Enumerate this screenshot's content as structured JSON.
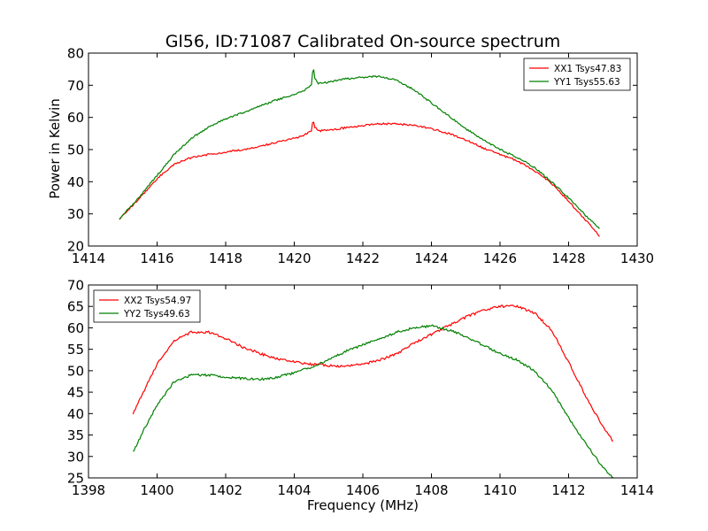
{
  "figure": {
    "title": "Gl56, ID:71087 Calibrated On-source spectrum",
    "xlabel": "Frequency (MHz)",
    "ylabel": "Power in Kelvin"
  },
  "chart_data": [
    {
      "type": "line",
      "title": "Gl56, ID:71087 Calibrated On-source spectrum",
      "xlabel": "",
      "ylabel": "Power in Kelvin",
      "xlim": [
        1414,
        1430
      ],
      "ylim": [
        20,
        80
      ],
      "xticks": [
        1414,
        1416,
        1418,
        1420,
        1422,
        1424,
        1426,
        1428,
        1430
      ],
      "yticks": [
        20,
        30,
        40,
        50,
        60,
        70,
        80
      ],
      "legend": "top-right",
      "grid": false,
      "series": [
        {
          "name": "XX1 Tsys47.83",
          "color": "#ff0000",
          "x": [
            1414.9,
            1415.5,
            1416.0,
            1416.5,
            1417.0,
            1417.5,
            1418.0,
            1418.5,
            1419.0,
            1419.5,
            1420.0,
            1420.3,
            1420.5,
            1420.55,
            1420.6,
            1420.7,
            1421.0,
            1421.5,
            1422.0,
            1422.5,
            1423.0,
            1423.5,
            1424.0,
            1424.5,
            1425.0,
            1425.5,
            1426.0,
            1426.5,
            1427.0,
            1427.5,
            1428.0,
            1428.5,
            1428.9
          ],
          "y": [
            28.5,
            35.0,
            41.0,
            45.5,
            47.5,
            48.5,
            49.2,
            50.0,
            51.0,
            52.3,
            53.5,
            54.5,
            55.8,
            59.5,
            57.0,
            55.8,
            56.0,
            56.8,
            57.5,
            58.0,
            58.0,
            57.5,
            56.5,
            55.0,
            53.0,
            50.5,
            48.5,
            46.5,
            43.5,
            39.5,
            34.0,
            28.0,
            23.0
          ]
        },
        {
          "name": "YY1 Tsys55.63",
          "color": "#008000",
          "x": [
            1414.9,
            1415.5,
            1416.0,
            1416.5,
            1417.0,
            1417.5,
            1418.0,
            1418.5,
            1419.0,
            1419.5,
            1420.0,
            1420.3,
            1420.5,
            1420.55,
            1420.6,
            1420.7,
            1421.0,
            1421.5,
            1422.0,
            1422.5,
            1423.0,
            1423.5,
            1424.0,
            1424.5,
            1425.0,
            1425.5,
            1426.0,
            1426.5,
            1427.0,
            1427.5,
            1428.0,
            1428.5,
            1428.9
          ],
          "y": [
            28.5,
            35.5,
            42.0,
            48.5,
            53.5,
            57.0,
            59.5,
            61.5,
            63.5,
            65.5,
            67.0,
            68.5,
            70.0,
            76.0,
            72.0,
            70.5,
            71.0,
            72.0,
            72.5,
            72.8,
            71.5,
            68.5,
            64.5,
            60.5,
            56.5,
            53.0,
            50.0,
            47.5,
            44.5,
            40.0,
            35.0,
            29.5,
            25.5
          ]
        }
      ]
    },
    {
      "type": "line",
      "title": "",
      "xlabel": "Frequency (MHz)",
      "ylabel": "",
      "xlim": [
        1398,
        1414
      ],
      "ylim": [
        25,
        70
      ],
      "xticks": [
        1398,
        1400,
        1402,
        1404,
        1406,
        1408,
        1410,
        1412,
        1414
      ],
      "yticks": [
        25,
        30,
        35,
        40,
        45,
        50,
        55,
        60,
        65,
        70
      ],
      "legend": "top-left",
      "grid": false,
      "series": [
        {
          "name": "XX2 Tsys54.97",
          "color": "#ff0000",
          "x": [
            1399.3,
            1399.6,
            1400.0,
            1400.5,
            1401.0,
            1401.5,
            1402.0,
            1402.5,
            1403.0,
            1403.5,
            1404.0,
            1404.5,
            1405.0,
            1405.5,
            1406.0,
            1406.5,
            1407.0,
            1407.5,
            1408.0,
            1408.5,
            1409.0,
            1409.5,
            1410.0,
            1410.5,
            1411.0,
            1411.5,
            1412.0,
            1412.5,
            1413.0,
            1413.3
          ],
          "y": [
            40.0,
            45.0,
            51.5,
            57.0,
            59.0,
            59.0,
            57.5,
            55.5,
            54.0,
            52.8,
            52.0,
            51.5,
            51.2,
            51.0,
            51.5,
            52.5,
            54.0,
            56.5,
            58.5,
            60.5,
            62.5,
            64.0,
            65.0,
            65.0,
            63.5,
            59.5,
            52.0,
            44.0,
            37.0,
            33.5
          ]
        },
        {
          "name": "YY2 Tsys49.63",
          "color": "#008000",
          "x": [
            1399.3,
            1399.6,
            1400.0,
            1400.5,
            1401.0,
            1401.5,
            1402.0,
            1402.5,
            1403.0,
            1403.5,
            1404.0,
            1404.5,
            1405.0,
            1405.5,
            1406.0,
            1406.5,
            1407.0,
            1407.5,
            1408.0,
            1408.5,
            1409.0,
            1409.5,
            1410.0,
            1410.5,
            1411.0,
            1411.5,
            1412.0,
            1412.5,
            1413.0,
            1413.3
          ],
          "y": [
            31.0,
            36.0,
            42.0,
            47.5,
            49.0,
            49.0,
            48.5,
            48.2,
            48.0,
            48.5,
            49.5,
            50.8,
            52.5,
            54.5,
            56.0,
            57.5,
            59.0,
            60.0,
            60.5,
            59.5,
            58.0,
            56.0,
            54.0,
            52.5,
            50.0,
            45.5,
            39.0,
            33.0,
            27.5,
            25.0
          ]
        }
      ]
    }
  ]
}
